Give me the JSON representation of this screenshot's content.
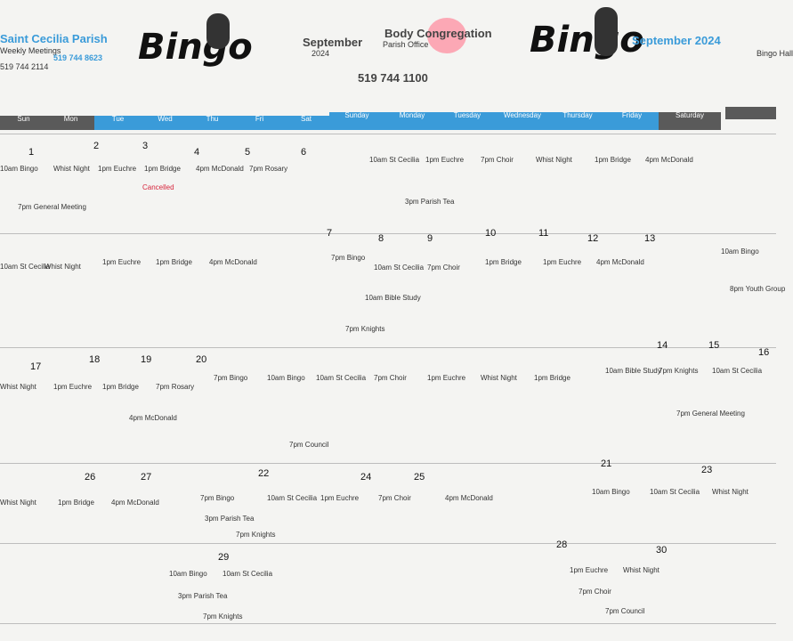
{
  "header": {
    "left_title": "Saint Cecilia Parish",
    "left_org": "Weekly Meetings",
    "left_phone": "519 744 2114",
    "left_fax": "519 744 8623",
    "mid_left_title": "September",
    "mid_left_year": "2024",
    "mid_center_name": "Body Congregation",
    "mid_center_sub": "Parish Office",
    "mid_center_phone": "519 744 1100",
    "right_title": "September 2024",
    "right_sub": "Bingo Hall",
    "logo_text": "Bingo"
  },
  "weekday_bar_left": [
    "Sun",
    "Mon",
    "Tue",
    "Wed",
    "Thu",
    "Fri",
    "Sat"
  ],
  "weekday_bar_right": [
    "Sunday",
    "Monday",
    "Tuesday",
    "Wednesday",
    "Thursday",
    "Friday",
    "Saturday"
  ],
  "days": [
    "1",
    "2",
    "3",
    "4",
    "5",
    "6",
    "7",
    "8",
    "9",
    "10",
    "11",
    "12",
    "13",
    "14",
    "15",
    "16",
    "17",
    "18",
    "19",
    "20",
    "21",
    "22",
    "23",
    "24",
    "25",
    "26",
    "27",
    "28",
    "29",
    "30"
  ],
  "events": {
    "e1": "10am Bingo",
    "e2": "1pm Euchre",
    "e3": "7pm Choir",
    "e4": "Cancelled",
    "e5": "7pm General Meeting",
    "e6": "10am St Cecilia",
    "e7": "Whist Night",
    "e8": "1pm Bridge",
    "e9": "4pm McDonald",
    "e10": "7pm Rosary",
    "e11": "7pm Bingo",
    "e12": "10am Bible Study",
    "e13": "3pm Parish Tea",
    "e14": "7pm Knights",
    "e15": "8pm Youth Group",
    "e16": "7pm Council"
  }
}
